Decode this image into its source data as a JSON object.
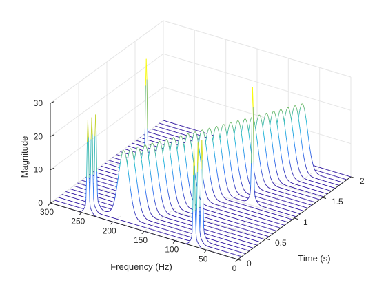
{
  "chart_data": {
    "type": "waterfall",
    "colormap": "parula",
    "colors": {
      "low": "#3e26a8",
      "mid": "#18b6d6",
      "high": "#f9fb0e",
      "grid": "#e6e6e6",
      "axis": "#262626"
    },
    "xlabel": "Frequency (Hz)",
    "ylabel": "Time (s)",
    "zlabel": "Magnitude",
    "xlim": [
      0,
      300
    ],
    "ylim": [
      0,
      2
    ],
    "zlim": [
      0,
      30
    ],
    "grid": true,
    "x_ticks": [
      {
        "value": 0,
        "label": "0"
      },
      {
        "value": 50,
        "label": "50"
      },
      {
        "value": 100,
        "label": "100"
      },
      {
        "value": 150,
        "label": "150"
      },
      {
        "value": 200,
        "label": "200"
      },
      {
        "value": 250,
        "label": "250"
      },
      {
        "value": 300,
        "label": "300"
      }
    ],
    "y_ticks": [
      {
        "value": 0,
        "label": "0"
      },
      {
        "value": 0.5,
        "label": "0.5"
      },
      {
        "value": 1,
        "label": "1"
      },
      {
        "value": 1.5,
        "label": "1.5"
      },
      {
        "value": 2,
        "label": "2"
      }
    ],
    "z_ticks": [
      {
        "value": 0,
        "label": "0"
      },
      {
        "value": 10,
        "label": "10"
      },
      {
        "value": 20,
        "label": "20"
      },
      {
        "value": 30,
        "label": "30"
      }
    ],
    "trace_count": 30,
    "signal_components": [
      {
        "name": "swept tone",
        "freq_start_hz": 200,
        "freq_end_hz": 60,
        "time_start_s": 0.07,
        "time_end_s": 1.93,
        "peak_magnitude": 20,
        "width_hz": 12
      },
      {
        "name": "tone burst 1",
        "freq_hz": 240,
        "time_start_s": 0.0,
        "time_end_s": 0.14,
        "peak_magnitude": 27
      },
      {
        "name": "tone burst 2",
        "freq_hz": 240,
        "time_start_s": 0.98,
        "time_end_s": 1.1,
        "peak_magnitude": 33
      },
      {
        "name": "tone burst 3",
        "freq_hz": 70,
        "time_start_s": 0.0,
        "time_end_s": 0.14,
        "peak_magnitude": 27
      },
      {
        "name": "tone burst 4",
        "freq_hz": 70,
        "time_start_s": 0.98,
        "time_end_s": 1.1,
        "peak_magnitude": 33
      }
    ]
  }
}
